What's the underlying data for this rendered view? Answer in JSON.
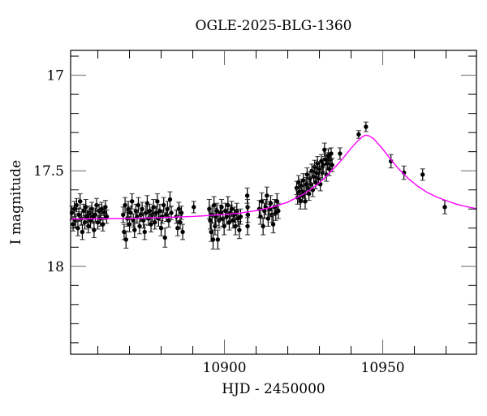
{
  "chart_data": {
    "type": "scatter",
    "title": "OGLE-2025-BLG-1360",
    "xlabel": "HJD - 2450000",
    "ylabel": "I magnitude",
    "xlim": [
      10851.4,
      10979.6
    ],
    "ylim": [
      18.46,
      16.87
    ],
    "y_inverted": true,
    "x_major_ticks": [
      10900,
      10950
    ],
    "x_minor_step": 10,
    "y_major_ticks": [
      17,
      17.5,
      18
    ],
    "y_minor_step": 0.1,
    "grid": false,
    "legend": null,
    "colors": {
      "points": "#000000",
      "errorbars": "#000000",
      "model": "#ff00ff",
      "frame": "#000000"
    },
    "series": [
      {
        "name": "OGLE I-band photometry",
        "kind": "errorbar-scatter",
        "points": [
          [
            10851.8,
            17.72,
            0.035
          ],
          [
            10852.2,
            17.78,
            0.035
          ],
          [
            10852.6,
            17.7,
            0.04
          ],
          [
            10853.0,
            17.76,
            0.035
          ],
          [
            10853.3,
            17.68,
            0.035
          ],
          [
            10853.7,
            17.8,
            0.04
          ],
          [
            10854.0,
            17.73,
            0.035
          ],
          [
            10854.4,
            17.66,
            0.04
          ],
          [
            10854.8,
            17.75,
            0.035
          ],
          [
            10855.1,
            17.82,
            0.04
          ],
          [
            10855.5,
            17.71,
            0.035
          ],
          [
            10855.9,
            17.77,
            0.035
          ],
          [
            10856.2,
            17.69,
            0.04
          ],
          [
            10856.6,
            17.74,
            0.035
          ],
          [
            10857.0,
            17.79,
            0.035
          ],
          [
            10857.3,
            17.72,
            0.035
          ],
          [
            10857.7,
            17.76,
            0.04
          ],
          [
            10858.1,
            17.7,
            0.035
          ],
          [
            10858.5,
            17.74,
            0.035
          ],
          [
            10858.8,
            17.81,
            0.04
          ],
          [
            10859.2,
            17.73,
            0.035
          ],
          [
            10859.6,
            17.68,
            0.035
          ],
          [
            10860.0,
            17.77,
            0.035
          ],
          [
            10860.4,
            17.71,
            0.035
          ],
          [
            10860.8,
            17.75,
            0.04
          ],
          [
            10861.2,
            17.7,
            0.035
          ],
          [
            10861.6,
            17.78,
            0.035
          ],
          [
            10862.0,
            17.72,
            0.035
          ],
          [
            10862.4,
            17.69,
            0.035
          ],
          [
            10862.8,
            17.74,
            0.035
          ],
          [
            10868.0,
            17.73,
            0.04
          ],
          [
            10868.3,
            17.82,
            0.04
          ],
          [
            10868.6,
            17.68,
            0.04
          ],
          [
            10868.9,
            17.86,
            0.045
          ],
          [
            10869.3,
            17.75,
            0.04
          ],
          [
            10869.6,
            17.7,
            0.04
          ],
          [
            10870.0,
            17.78,
            0.04
          ],
          [
            10870.4,
            17.72,
            0.035
          ],
          [
            10870.8,
            17.66,
            0.04
          ],
          [
            10871.2,
            17.76,
            0.035
          ],
          [
            10871.6,
            17.81,
            0.04
          ],
          [
            10872.0,
            17.71,
            0.035
          ],
          [
            10872.4,
            17.74,
            0.035
          ],
          [
            10872.8,
            17.68,
            0.04
          ],
          [
            10873.2,
            17.79,
            0.04
          ],
          [
            10873.6,
            17.73,
            0.035
          ],
          [
            10874.0,
            17.7,
            0.035
          ],
          [
            10874.4,
            17.76,
            0.04
          ],
          [
            10874.8,
            17.82,
            0.04
          ],
          [
            10875.2,
            17.72,
            0.035
          ],
          [
            10875.6,
            17.67,
            0.04
          ],
          [
            10876.0,
            17.75,
            0.035
          ],
          [
            10876.4,
            17.71,
            0.035
          ],
          [
            10876.8,
            17.78,
            0.04
          ],
          [
            10877.2,
            17.73,
            0.035
          ],
          [
            10877.6,
            17.69,
            0.04
          ],
          [
            10878.0,
            17.77,
            0.035
          ],
          [
            10878.4,
            17.72,
            0.035
          ],
          [
            10878.8,
            17.66,
            0.04
          ],
          [
            10879.2,
            17.75,
            0.04
          ],
          [
            10879.6,
            17.71,
            0.035
          ],
          [
            10880.0,
            17.8,
            0.04
          ],
          [
            10880.4,
            17.74,
            0.035
          ],
          [
            10880.8,
            17.68,
            0.04
          ],
          [
            10881.2,
            17.85,
            0.05
          ],
          [
            10881.6,
            17.73,
            0.035
          ],
          [
            10882.0,
            17.7,
            0.04
          ],
          [
            10882.4,
            17.76,
            0.035
          ],
          [
            10882.8,
            17.65,
            0.04
          ],
          [
            10883.2,
            17.72,
            0.035
          ],
          [
            10884.8,
            17.74,
            0.035
          ],
          [
            10885.2,
            17.8,
            0.04
          ],
          [
            10885.6,
            17.7,
            0.035
          ],
          [
            10886.0,
            17.77,
            0.035
          ],
          [
            10886.4,
            17.72,
            0.035
          ],
          [
            10886.8,
            17.82,
            0.04
          ],
          [
            10890.3,
            17.69,
            0.03
          ],
          [
            10895.2,
            17.7,
            0.05
          ],
          [
            10895.5,
            17.76,
            0.045
          ],
          [
            10895.8,
            17.82,
            0.05
          ],
          [
            10896.1,
            17.73,
            0.045
          ],
          [
            10896.4,
            17.86,
            0.05
          ],
          [
            10896.7,
            17.68,
            0.045
          ],
          [
            10897.0,
            17.79,
            0.045
          ],
          [
            10897.3,
            17.74,
            0.045
          ],
          [
            10897.6,
            17.71,
            0.04
          ],
          [
            10897.9,
            17.86,
            0.05
          ],
          [
            10898.3,
            17.76,
            0.04
          ],
          [
            10898.7,
            17.72,
            0.04
          ],
          [
            10899.1,
            17.69,
            0.04
          ],
          [
            10899.5,
            17.75,
            0.04
          ],
          [
            10899.9,
            17.79,
            0.045
          ],
          [
            10900.3,
            17.71,
            0.04
          ],
          [
            10900.7,
            17.74,
            0.04
          ],
          [
            10901.1,
            17.68,
            0.045
          ],
          [
            10901.5,
            17.77,
            0.04
          ],
          [
            10901.9,
            17.72,
            0.04
          ],
          [
            10902.3,
            17.7,
            0.04
          ],
          [
            10902.7,
            17.76,
            0.04
          ],
          [
            10903.1,
            17.73,
            0.04
          ],
          [
            10903.5,
            17.79,
            0.045
          ],
          [
            10903.9,
            17.71,
            0.04
          ],
          [
            10904.3,
            17.75,
            0.04
          ],
          [
            10904.7,
            17.81,
            0.045
          ],
          [
            10905.1,
            17.74,
            0.04
          ],
          [
            10907.2,
            17.63,
            0.04
          ],
          [
            10907.3,
            17.69,
            0.04
          ],
          [
            10907.4,
            17.73,
            0.04
          ],
          [
            10907.3,
            17.79,
            0.045
          ],
          [
            10911.0,
            17.7,
            0.045
          ],
          [
            10911.4,
            17.74,
            0.04
          ],
          [
            10911.8,
            17.66,
            0.045
          ],
          [
            10912.2,
            17.79,
            0.045
          ],
          [
            10912.6,
            17.71,
            0.04
          ],
          [
            10913.0,
            17.69,
            0.04
          ],
          [
            10913.4,
            17.63,
            0.045
          ],
          [
            10913.8,
            17.75,
            0.04
          ],
          [
            10914.2,
            17.7,
            0.04
          ],
          [
            10914.6,
            17.67,
            0.04
          ],
          [
            10915.0,
            17.73,
            0.04
          ],
          [
            10915.4,
            17.78,
            0.045
          ],
          [
            10915.8,
            17.69,
            0.04
          ],
          [
            10916.2,
            17.72,
            0.04
          ],
          [
            10916.6,
            17.66,
            0.04
          ],
          [
            10917.0,
            17.71,
            0.04
          ],
          [
            10922.8,
            17.59,
            0.035
          ],
          [
            10923.1,
            17.64,
            0.035
          ],
          [
            10923.4,
            17.56,
            0.035
          ],
          [
            10923.7,
            17.61,
            0.04
          ],
          [
            10924.0,
            17.66,
            0.04
          ],
          [
            10924.3,
            17.58,
            0.035
          ],
          [
            10924.6,
            17.63,
            0.035
          ],
          [
            10924.9,
            17.55,
            0.035
          ],
          [
            10925.2,
            17.61,
            0.035
          ],
          [
            10925.5,
            17.66,
            0.04
          ],
          [
            10925.8,
            17.57,
            0.035
          ],
          [
            10926.1,
            17.52,
            0.035
          ],
          [
            10926.4,
            17.59,
            0.035
          ],
          [
            10926.7,
            17.62,
            0.035
          ],
          [
            10927.0,
            17.54,
            0.035
          ],
          [
            10927.3,
            17.57,
            0.035
          ],
          [
            10927.6,
            17.5,
            0.035
          ],
          [
            10927.9,
            17.6,
            0.035
          ],
          [
            10928.2,
            17.53,
            0.035
          ],
          [
            10928.5,
            17.48,
            0.035
          ],
          [
            10928.8,
            17.56,
            0.035
          ],
          [
            10929.1,
            17.51,
            0.035
          ],
          [
            10929.4,
            17.46,
            0.035
          ],
          [
            10929.7,
            17.54,
            0.035
          ],
          [
            10930.0,
            17.49,
            0.035
          ],
          [
            10930.3,
            17.57,
            0.035
          ],
          [
            10930.6,
            17.45,
            0.035
          ],
          [
            10930.9,
            17.51,
            0.035
          ],
          [
            10931.2,
            17.47,
            0.035
          ],
          [
            10931.6,
            17.39,
            0.035
          ],
          [
            10931.9,
            17.44,
            0.035
          ],
          [
            10932.2,
            17.52,
            0.035
          ],
          [
            10932.5,
            17.46,
            0.035
          ],
          [
            10932.8,
            17.42,
            0.035
          ],
          [
            10933.1,
            17.49,
            0.035
          ],
          [
            10933.4,
            17.44,
            0.035
          ],
          [
            10933.7,
            17.41,
            0.03
          ],
          [
            10934.0,
            17.47,
            0.035
          ],
          [
            10936.5,
            17.41,
            0.03
          ],
          [
            10942.4,
            17.31,
            0.02
          ],
          [
            10944.7,
            17.27,
            0.025
          ],
          [
            10952.6,
            17.45,
            0.035
          ],
          [
            10956.7,
            17.51,
            0.035
          ],
          [
            10962.6,
            17.52,
            0.03
          ],
          [
            10969.6,
            17.69,
            0.035
          ]
        ]
      },
      {
        "name": "PSPL model fit",
        "kind": "line",
        "color": "#ff00ff",
        "points": [
          [
            10851.4,
            17.752
          ],
          [
            10860,
            17.751
          ],
          [
            10870,
            17.749
          ],
          [
            10880,
            17.745
          ],
          [
            10890,
            17.739
          ],
          [
            10900,
            17.729
          ],
          [
            10905,
            17.721
          ],
          [
            10910,
            17.709
          ],
          [
            10915,
            17.691
          ],
          [
            10920,
            17.664
          ],
          [
            10925,
            17.622
          ],
          [
            10928,
            17.588
          ],
          [
            10931,
            17.548
          ],
          [
            10934,
            17.497
          ],
          [
            10936,
            17.462
          ],
          [
            10938,
            17.423
          ],
          [
            10940,
            17.382
          ],
          [
            10942,
            17.345
          ],
          [
            10943.5,
            17.323
          ],
          [
            10944.5,
            17.314
          ],
          [
            10945.5,
            17.316
          ],
          [
            10947,
            17.331
          ],
          [
            10949,
            17.367
          ],
          [
            10951,
            17.408
          ],
          [
            10953,
            17.45
          ],
          [
            10955,
            17.49
          ],
          [
            10958,
            17.54
          ],
          [
            10961,
            17.58
          ],
          [
            10964,
            17.613
          ],
          [
            10967,
            17.637
          ],
          [
            10970,
            17.656
          ],
          [
            10973,
            17.673
          ],
          [
            10976,
            17.686
          ],
          [
            10979.6,
            17.698
          ]
        ]
      }
    ]
  }
}
